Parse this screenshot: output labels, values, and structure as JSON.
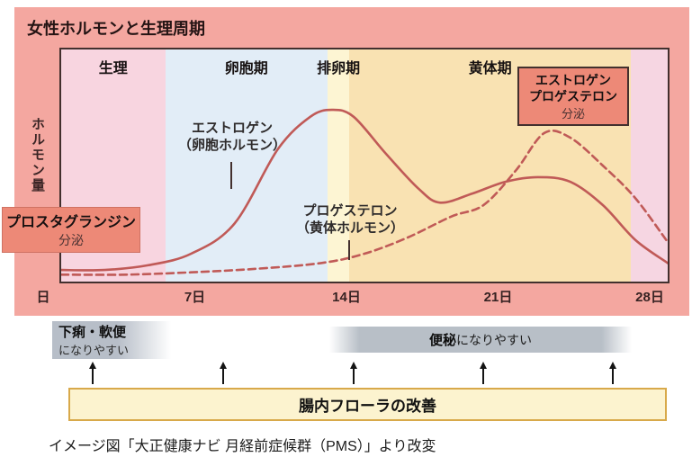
{
  "panel": {
    "title": "女性ホルモンと生理周期"
  },
  "colors": {
    "panel_bg": "#f4a7a0",
    "plot_border": "#42302e",
    "curve": "#c05a57",
    "annotation_box_bg": "#ed8977",
    "gray_bar": "#b8bfc7",
    "flora_box_bg": "#fcf3cf",
    "flora_box_border": "#d8a94a"
  },
  "chart_data": {
    "type": "line",
    "title": "女性ホルモンと生理周期",
    "ylabel": "ホルモン量",
    "x_range_days": [
      0,
      28
    ],
    "x_ticks": [
      {
        "day": 0,
        "label": "日"
      },
      {
        "day": 7,
        "label": "7日"
      },
      {
        "day": 14,
        "label": "14日"
      },
      {
        "day": 21,
        "label": "21日"
      },
      {
        "day": 28,
        "label": "28日"
      }
    ],
    "y_axis_note": "relative hormone level 0-100 (axis unlabeled)",
    "grid": false,
    "phases": [
      {
        "label": "生理",
        "start_day": 0,
        "end_day": 4.8,
        "color": "#f8d5e0"
      },
      {
        "label": "卵胞期",
        "start_day": 4.8,
        "end_day": 12.3,
        "color": "#e2edf7"
      },
      {
        "label": "排卵期",
        "start_day": 12.3,
        "end_day": 13.3,
        "color": "#fdf5d3"
      },
      {
        "label": "黄体期",
        "start_day": 13.3,
        "end_day": 26.3,
        "color": "#f9e2b2"
      },
      {
        "label": "",
        "start_day": 26.3,
        "end_day": 28,
        "color": "#f6d6e2"
      }
    ],
    "series": [
      {
        "name": "エストロゲン（卵胞ホルモン）",
        "line_style": "solid",
        "color": "#c05a57",
        "points": [
          [
            0,
            5
          ],
          [
            2,
            5
          ],
          [
            4,
            7
          ],
          [
            6,
            12
          ],
          [
            8,
            25
          ],
          [
            10,
            57
          ],
          [
            11.5,
            71
          ],
          [
            12.5,
            74
          ],
          [
            13.5,
            71
          ],
          [
            15,
            55
          ],
          [
            16.5,
            40
          ],
          [
            17.5,
            34
          ],
          [
            19,
            38
          ],
          [
            20.5,
            43
          ],
          [
            22,
            45
          ],
          [
            23.5,
            43
          ],
          [
            25,
            33
          ],
          [
            26.5,
            18
          ],
          [
            28,
            8
          ]
        ]
      },
      {
        "name": "プロゲステロン（黄体ホルモン）",
        "line_style": "dashed",
        "color": "#c05a57",
        "points": [
          [
            0,
            3
          ],
          [
            3,
            3
          ],
          [
            6,
            4
          ],
          [
            9,
            5.5
          ],
          [
            12,
            8
          ],
          [
            14,
            12
          ],
          [
            16,
            19
          ],
          [
            18,
            28
          ],
          [
            19.5,
            33
          ],
          [
            21,
            48
          ],
          [
            22.3,
            64
          ],
          [
            23.5,
            62
          ],
          [
            25,
            50
          ],
          [
            26.5,
            36
          ],
          [
            28,
            17
          ]
        ]
      }
    ],
    "annotations": [
      {
        "text": "プロスタグランジン",
        "subtext": "分泌",
        "position": "lower left, during 生理"
      },
      {
        "text": "エストロゲン／プロゲステロン",
        "subtext": "分泌",
        "position": "upper right, during 黄体期"
      }
    ]
  },
  "curve_labels": {
    "estrogen": {
      "line1": "エストロゲン",
      "line2": "（卵胞ホルモン）"
    },
    "progesterone": {
      "line1": "プロゲステロン",
      "line2": "（黄体ホルモン）"
    }
  },
  "boxes": {
    "prostaglandin": {
      "line1": "プロスタグランジン",
      "line2": "分泌"
    },
    "secretion": {
      "line1": "エストロゲン",
      "line2": "プロゲステロン",
      "line3": "分泌"
    }
  },
  "bottom": {
    "diarrhea_bar": {
      "line1": "下痢・軟便",
      "line2": "になりやすい"
    },
    "constipation_bar": {
      "bold": "便秘",
      "rest": "になりやすい"
    },
    "arrow_count": 5,
    "flora_box": "腸内フローラの改善",
    "caption": "イメージ図「大正健康ナビ 月経前症候群（PMS）」より改変"
  }
}
